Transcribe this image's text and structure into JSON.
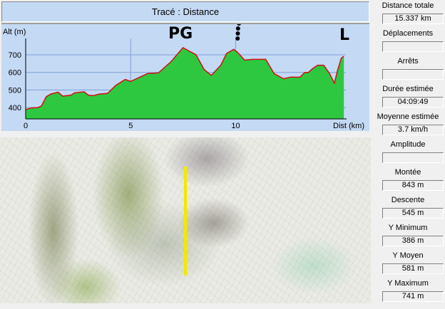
{
  "header": {
    "title": "Tracé : Distance"
  },
  "chart_data": {
    "type": "area",
    "title": "Tracé : Distance",
    "ylabel": "Alt (m)",
    "xlabel": "Dist (km)",
    "xticks": [
      0,
      5,
      10
    ],
    "yticks": [
      400,
      500,
      600,
      700
    ],
    "xlim": [
      0,
      15.337
    ],
    "ylim": [
      335,
      790
    ],
    "grid": true,
    "fill_color": "#2ec840",
    "line_color": "#d01010",
    "points": [
      [
        0,
        388
      ],
      [
        0.25,
        398
      ],
      [
        0.58,
        400
      ],
      [
        0.75,
        409
      ],
      [
        0.98,
        462
      ],
      [
        1.2,
        477
      ],
      [
        1.54,
        488
      ],
      [
        1.76,
        465
      ],
      [
        2.16,
        471
      ],
      [
        2.33,
        484
      ],
      [
        2.78,
        490
      ],
      [
        3.0,
        470
      ],
      [
        3.22,
        468
      ],
      [
        3.5,
        477
      ],
      [
        3.9,
        481
      ],
      [
        4.29,
        526
      ],
      [
        4.74,
        560
      ],
      [
        5.0,
        549
      ],
      [
        5.42,
        572
      ],
      [
        5.81,
        594
      ],
      [
        6.32,
        597
      ],
      [
        6.93,
        662
      ],
      [
        7.49,
        741
      ],
      [
        7.78,
        722
      ],
      [
        8.11,
        701
      ],
      [
        8.5,
        616
      ],
      [
        8.84,
        583
      ],
      [
        9.29,
        641
      ],
      [
        9.57,
        708
      ],
      [
        9.91,
        731
      ],
      [
        10.08,
        715
      ],
      [
        10.42,
        670
      ],
      [
        10.81,
        674
      ],
      [
        11.43,
        674
      ],
      [
        11.83,
        593
      ],
      [
        12.28,
        564
      ],
      [
        12.61,
        573
      ],
      [
        13.06,
        573
      ],
      [
        13.29,
        600
      ],
      [
        13.46,
        600
      ],
      [
        13.68,
        623
      ],
      [
        13.91,
        641
      ],
      [
        14.19,
        641
      ],
      [
        14.47,
        593
      ],
      [
        14.7,
        539
      ],
      [
        14.87,
        620
      ],
      [
        15.03,
        681
      ],
      [
        15.15,
        692
      ]
    ],
    "annotations": [
      "PG",
      "L"
    ]
  },
  "stats": [
    {
      "label": "Distance totale",
      "value": "15.337 km"
    },
    {
      "label": "Déplacements",
      "value": ""
    },
    {
      "label": "Arrêts",
      "value": ""
    },
    {
      "label": "Durée estimée",
      "value": "04:09:49"
    },
    {
      "label": "Moyenne estimée",
      "value": "3.7 km/h"
    },
    {
      "label": "Amplitude",
      "value": ""
    },
    {
      "label": "Montée",
      "value": "843 m"
    },
    {
      "label": "Descente",
      "value": "545 m"
    },
    {
      "label": "Y Minimum",
      "value": "386 m"
    },
    {
      "label": "Y Moyen",
      "value": "581 m"
    },
    {
      "label": "Y Maximum",
      "value": "741 m"
    }
  ],
  "map": {
    "track_color": "#f4e800"
  }
}
